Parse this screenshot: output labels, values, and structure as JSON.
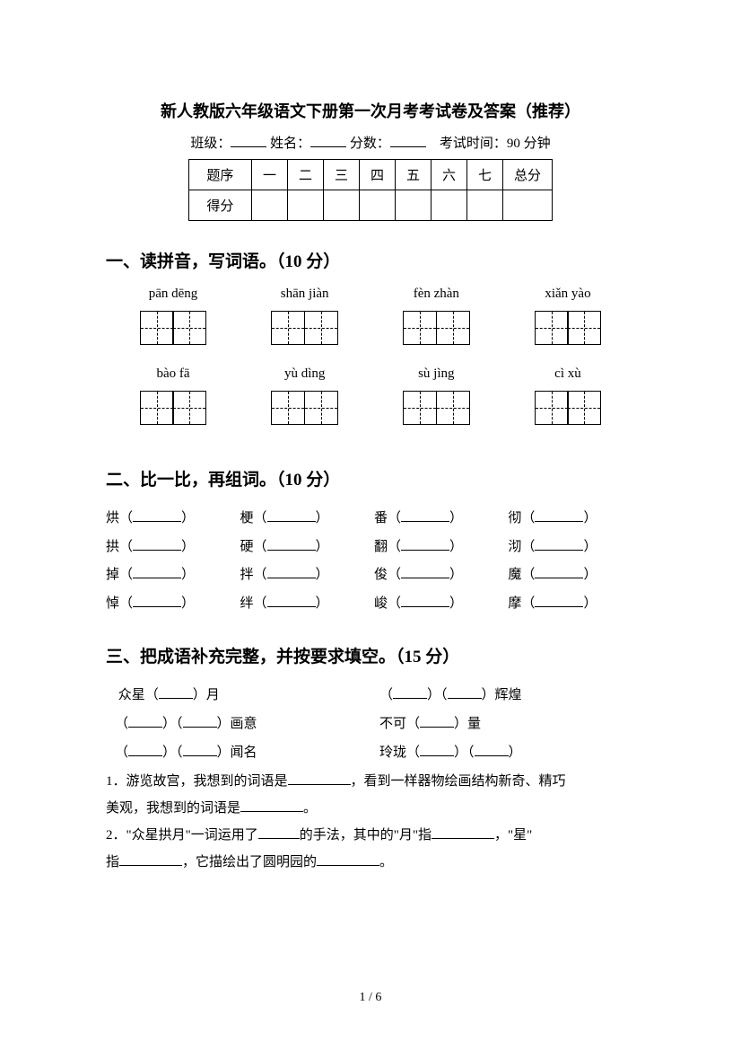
{
  "colors": {
    "text": "#000000",
    "background": "#ffffff"
  },
  "fonts": {
    "body": "SimSun",
    "pinyin": "Times New Roman",
    "title_size": 18,
    "heading_size": 19,
    "body_size": 15
  },
  "title": "新人教版六年级语文下册第一次月考考试卷及答案（推荐）",
  "info": {
    "class_label": "班级：",
    "name_label": "姓名：",
    "score_label": "分数：",
    "time_label": "考试时间：90 分钟"
  },
  "score_table": {
    "header": [
      "题序",
      "一",
      "二",
      "三",
      "四",
      "五",
      "六",
      "七",
      "总分"
    ],
    "row_label": "得分"
  },
  "section1": {
    "heading": "一、读拼音，写词语。（10 分）",
    "row1": [
      "pān dēng",
      "shān jiàn",
      "fèn zhàn",
      "xiǎn yào"
    ],
    "row2": [
      "bào fā",
      "yù dìng",
      "sù jìng",
      "cì xù"
    ]
  },
  "section2": {
    "heading": "二、比一比，再组词。（10 分）",
    "rows": [
      [
        "烘",
        "梗",
        "番",
        "彻"
      ],
      [
        "拱",
        "硬",
        "翻",
        "沏"
      ],
      [
        "掉",
        "拌",
        "俊",
        "魔"
      ],
      [
        "悼",
        "绊",
        "峻",
        "摩"
      ]
    ]
  },
  "section3": {
    "heading": "三、把成语补充完整，并按要求填空。（15 分）",
    "idioms": {
      "r1c1_a": "众星（",
      "r1c1_b": "）月",
      "r1c2_a": "（",
      "r1c2_b": "）（",
      "r1c2_c": "）辉煌",
      "r2c1_a": "（",
      "r2c1_b": "）（",
      "r2c1_c": "）画意",
      "r2c2_a": "不可（",
      "r2c2_b": "）量",
      "r3c1_a": "（",
      "r3c1_b": "）（",
      "r3c1_c": "）闻名",
      "r3c2_a": "玲珑（",
      "r3c2_b": "）（",
      "r3c2_c": "）"
    },
    "q1_a": "1．游览故宫，我想到的词语是",
    "q1_b": "，看到一样器物绘画结构新奇、精巧",
    "q1_c": "美观，我想到的词语是",
    "q1_d": "。",
    "q2_a": "2．\"众星拱月\"一词运用了",
    "q2_b": "的手法，其中的\"月\"指",
    "q2_c": "，\"星\"",
    "q2_d": "指",
    "q2_e": "，它描绘出了圆明园的",
    "q2_f": "。"
  },
  "page_num": "1 / 6"
}
